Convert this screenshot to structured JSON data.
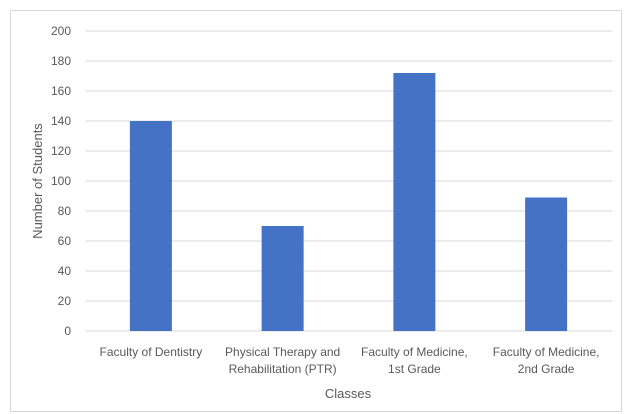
{
  "chart_data": {
    "type": "bar",
    "categories": [
      [
        "Faculty of Dentistry"
      ],
      [
        "Physical Therapy and",
        "Rehabilitation (PTR)"
      ],
      [
        "Faculty of Medicine,",
        "1st Grade"
      ],
      [
        "Faculty of Medicine,",
        "2nd Grade"
      ]
    ],
    "values": [
      140,
      70,
      172,
      89
    ],
    "xlabel": "Classes",
    "ylabel": "Number of Students",
    "ylim": [
      0,
      200
    ],
    "yticks": [
      0,
      20,
      40,
      60,
      80,
      100,
      120,
      140,
      160,
      180,
      200
    ],
    "grid": true,
    "bar_color": "#4472c4",
    "grid_color": "#d9d9d9"
  }
}
